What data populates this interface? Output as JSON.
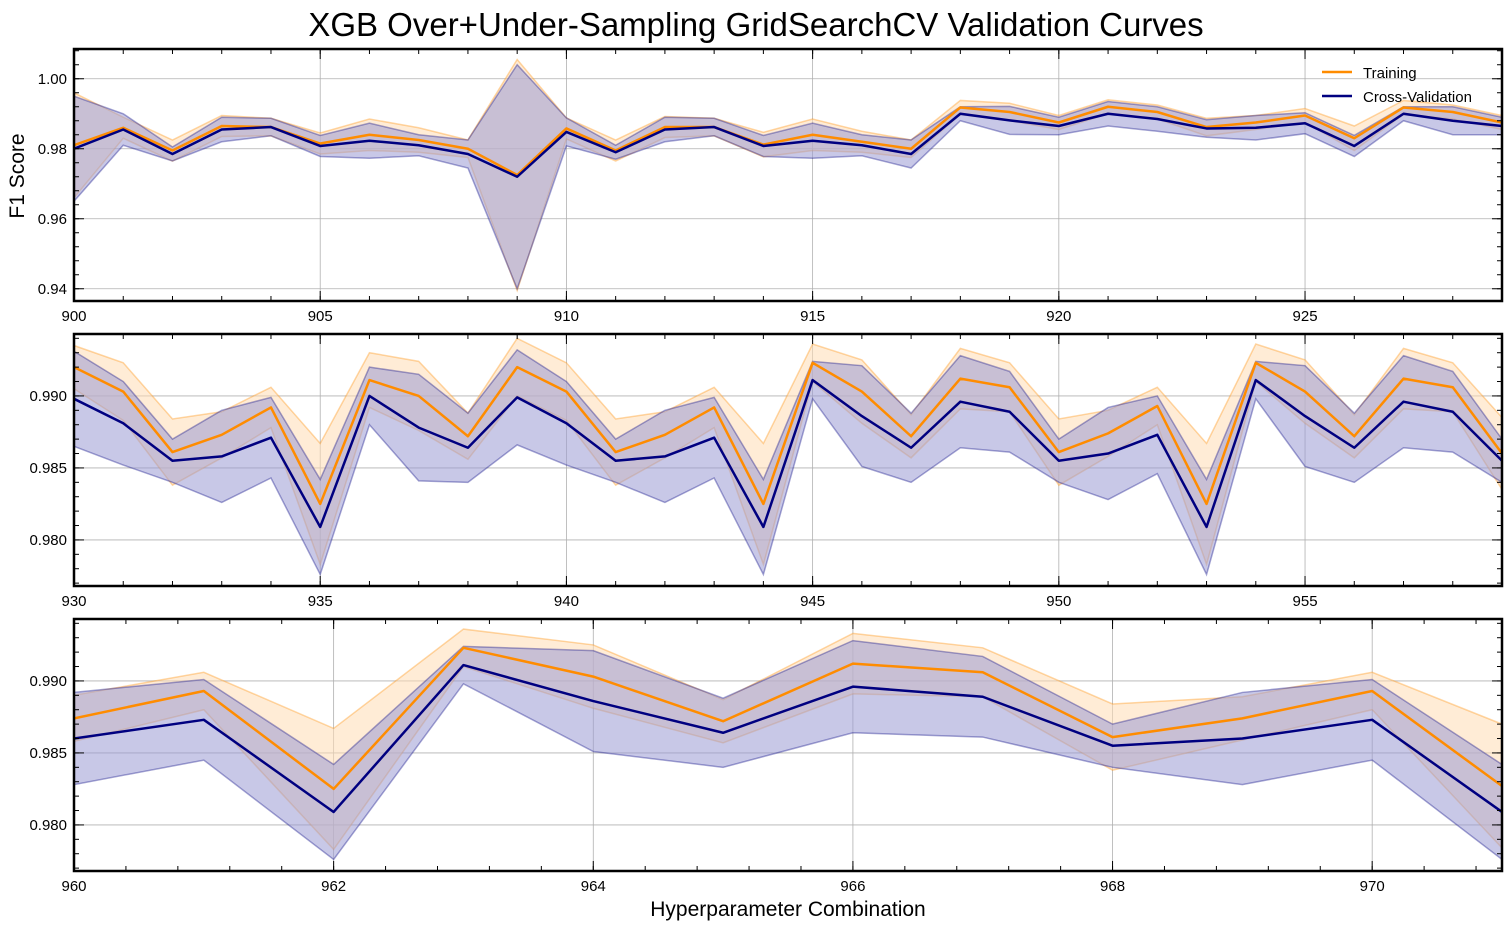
{
  "colors": {
    "training": "#ff8c00",
    "cross_validation": "#000080",
    "training_band": "#ffdcb4",
    "cv_band": "#9a9ad4"
  },
  "chart_data": {
    "type": "line",
    "title": "XGB Over+Under-Sampling GridSearchCV Validation Curves",
    "xlabel": "Hyperparameter Combination",
    "ylabel": "F1 Score",
    "legend": {
      "placement": "top-right",
      "entries": [
        "Training",
        "Cross-Validation"
      ]
    },
    "grid": true,
    "panels": [
      {
        "xlim": [
          900,
          929
        ],
        "ylim": [
          0.9365,
          1.0085
        ],
        "xticks": [
          900,
          905,
          910,
          915,
          920,
          925
        ],
        "yticks": [
          0.94,
          0.96,
          0.98,
          1.0
        ],
        "ytick_labels": [
          "0.94",
          "0.96",
          "0.98",
          "1.00"
        ],
        "x": [
          900,
          901,
          902,
          903,
          904,
          905,
          906,
          907,
          908,
          909,
          910,
          911,
          912,
          913,
          914,
          915,
          916,
          917,
          918,
          919,
          920,
          921,
          922,
          923,
          924,
          925,
          926,
          927,
          928,
          929
        ],
        "train_mean": [
          0.981,
          0.986,
          0.9795,
          0.9865,
          0.9862,
          0.9815,
          0.984,
          0.9825,
          0.98,
          0.9725,
          0.9858,
          0.9795,
          0.9862,
          0.9862,
          0.9812,
          0.984,
          0.982,
          0.98,
          0.9918,
          0.9905,
          0.9875,
          0.992,
          0.9905,
          0.9862,
          0.9875,
          0.9895,
          0.983,
          0.9918,
          0.9905,
          0.9875
        ],
        "train_std": [
          0.015,
          0.003,
          0.003,
          0.003,
          0.0025,
          0.003,
          0.0045,
          0.0035,
          0.0025,
          0.033,
          0.003,
          0.003,
          0.003,
          0.0025,
          0.0035,
          0.0045,
          0.003,
          0.0025,
          0.002,
          0.0025,
          0.002,
          0.002,
          0.002,
          0.0025,
          0.002,
          0.002,
          0.0035,
          0.002,
          0.002,
          0.002
        ],
        "cv_mean": [
          0.98,
          0.9855,
          0.9785,
          0.9855,
          0.9862,
          0.9808,
          0.9823,
          0.981,
          0.9785,
          0.972,
          0.9848,
          0.979,
          0.9855,
          0.9862,
          0.9808,
          0.9823,
          0.981,
          0.9785,
          0.99,
          0.9881,
          0.9865,
          0.99,
          0.9885,
          0.9858,
          0.986,
          0.9873,
          0.9808,
          0.99,
          0.988,
          0.9865
        ],
        "cv_std": [
          0.015,
          0.0045,
          0.002,
          0.0035,
          0.0025,
          0.003,
          0.005,
          0.003,
          0.004,
          0.032,
          0.004,
          0.002,
          0.0035,
          0.0025,
          0.003,
          0.005,
          0.003,
          0.004,
          0.002,
          0.004,
          0.0025,
          0.0035,
          0.0035,
          0.0025,
          0.0035,
          0.003,
          0.003,
          0.002,
          0.004,
          0.0025
        ]
      },
      {
        "xlim": [
          930,
          959
        ],
        "ylim": [
          0.9768,
          0.9943
        ],
        "xticks": [
          930,
          935,
          940,
          945,
          950,
          955
        ],
        "yticks": [
          0.98,
          0.985,
          0.99
        ],
        "ytick_labels": [
          "0.980",
          "0.985",
          "0.990"
        ],
        "x": [
          930,
          931,
          932,
          933,
          934,
          935,
          936,
          937,
          938,
          939,
          940,
          941,
          942,
          943,
          944,
          945,
          946,
          947,
          948,
          949,
          950,
          951,
          952,
          953,
          954,
          955,
          956,
          957,
          958,
          959
        ],
        "train_mean": [
          0.992,
          0.9903,
          0.9861,
          0.9873,
          0.9892,
          0.9825,
          0.9911,
          0.99,
          0.9872,
          0.992,
          0.9903,
          0.9861,
          0.9873,
          0.9892,
          0.9825,
          0.9923,
          0.9903,
          0.9872,
          0.9912,
          0.9906,
          0.9861,
          0.9874,
          0.9893,
          0.9825,
          0.9923,
          0.9903,
          0.9872,
          0.9912,
          0.9906,
          0.986
        ],
        "train_std": [
          0.0015,
          0.002,
          0.0023,
          0.0016,
          0.0014,
          0.0042,
          0.0019,
          0.0024,
          0.0016,
          0.002,
          0.002,
          0.0023,
          0.0016,
          0.0014,
          0.0042,
          0.0013,
          0.0022,
          0.0015,
          0.0021,
          0.0017,
          0.0023,
          0.0016,
          0.0013,
          0.0042,
          0.0013,
          0.0022,
          0.0015,
          0.0021,
          0.0017,
          0.0025
        ],
        "cv_mean": [
          0.9898,
          0.9881,
          0.9855,
          0.9858,
          0.9871,
          0.9809,
          0.99,
          0.9878,
          0.9864,
          0.9899,
          0.9881,
          0.9855,
          0.9858,
          0.9871,
          0.9809,
          0.9911,
          0.9886,
          0.9864,
          0.9896,
          0.9889,
          0.9855,
          0.986,
          0.9873,
          0.9809,
          0.9911,
          0.9886,
          0.9864,
          0.9896,
          0.9889,
          0.9855
        ],
        "cv_std": [
          0.0033,
          0.0029,
          0.0015,
          0.0032,
          0.0028,
          0.0033,
          0.002,
          0.0037,
          0.0024,
          0.0033,
          0.0029,
          0.0015,
          0.0032,
          0.0028,
          0.0033,
          0.0013,
          0.0035,
          0.0024,
          0.0032,
          0.0028,
          0.0015,
          0.0032,
          0.0027,
          0.0033,
          0.0013,
          0.0035,
          0.0024,
          0.0032,
          0.0028,
          0.0015
        ]
      },
      {
        "xlim": [
          960,
          971
        ],
        "ylim": [
          0.9768,
          0.9943
        ],
        "xticks": [
          960,
          962,
          964,
          966,
          968,
          970
        ],
        "yticks": [
          0.98,
          0.985,
          0.99
        ],
        "ytick_labels": [
          "0.980",
          "0.985",
          "0.990"
        ],
        "x": [
          960,
          961,
          962,
          963,
          964,
          965,
          966,
          967,
          968,
          969,
          970,
          971
        ],
        "train_mean": [
          0.9874,
          0.9893,
          0.9825,
          0.9923,
          0.9903,
          0.9872,
          0.9912,
          0.9906,
          0.9861,
          0.9874,
          0.9893,
          0.9827
        ],
        "train_std": [
          0.0016,
          0.0013,
          0.0042,
          0.0013,
          0.0022,
          0.0015,
          0.0021,
          0.0017,
          0.0023,
          0.0015,
          0.0013,
          0.0043
        ],
        "cv_mean": [
          0.986,
          0.9873,
          0.9809,
          0.9911,
          0.9886,
          0.9864,
          0.9896,
          0.9889,
          0.9855,
          0.986,
          0.9873,
          0.9809
        ],
        "cv_std": [
          0.0032,
          0.0028,
          0.0033,
          0.0013,
          0.0035,
          0.0024,
          0.0032,
          0.0028,
          0.0015,
          0.0032,
          0.0028,
          0.0033
        ]
      }
    ]
  }
}
